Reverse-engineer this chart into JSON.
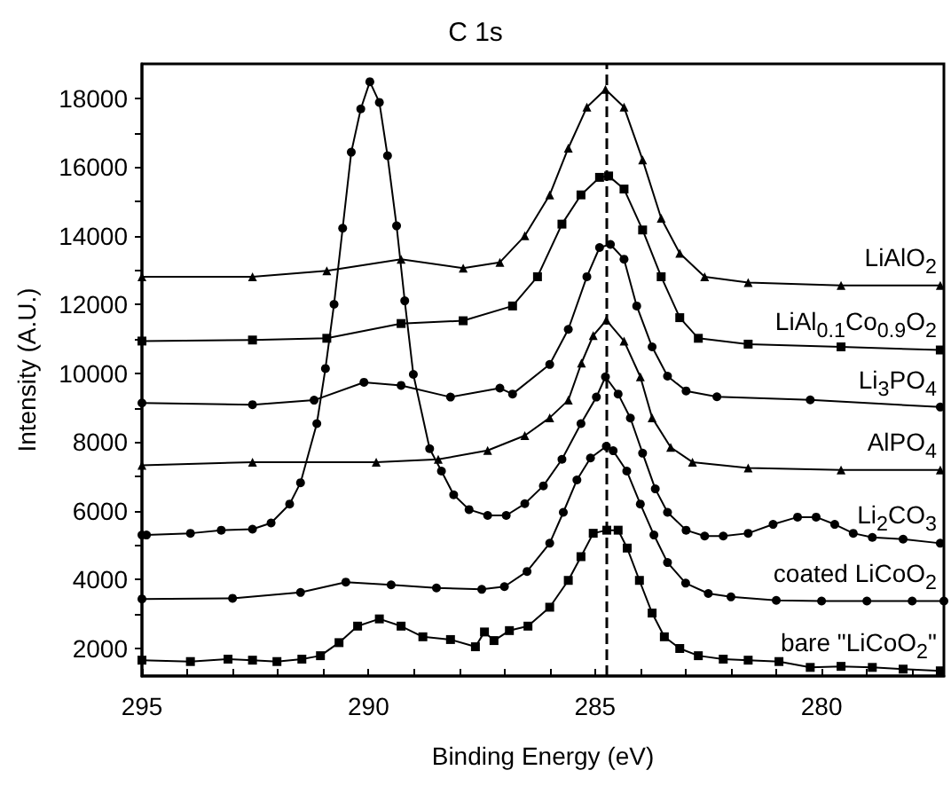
{
  "chart_data": {
    "type": "line",
    "title": "C 1s",
    "xlabel": "Binding Energy (eV)",
    "ylabel": "Intensity (A.U.)",
    "xlim": [
      295,
      277.3
    ],
    "ylim": [
      1200,
      19000
    ],
    "xticks": [
      295,
      {
        "value": 294,
        "label": null
      },
      {
        "value": 293,
        "label": null
      },
      {
        "value": 292,
        "label": null
      },
      {
        "value": 291,
        "label": null
      },
      290,
      {
        "value": 289,
        "label": null
      },
      {
        "value": 288,
        "label": null
      },
      {
        "value": 287,
        "label": null
      },
      {
        "value": 286,
        "label": null
      },
      285,
      {
        "value": 284,
        "label": null
      },
      {
        "value": 283,
        "label": null
      },
      {
        "value": 282,
        "label": null
      },
      {
        "value": 281,
        "label": null
      },
      280,
      {
        "value": 279,
        "label": null
      },
      {
        "value": 278,
        "label": null
      }
    ],
    "yticks": [
      2000,
      {
        "value": 3000,
        "label": null
      },
      4000,
      {
        "value": 5000,
        "label": null
      },
      6000,
      {
        "value": 7000,
        "label": null
      },
      8000,
      {
        "value": 9000,
        "label": null
      },
      10000,
      {
        "value": 11000,
        "label": null
      },
      12000,
      {
        "value": 13000,
        "label": null
      },
      14000,
      {
        "value": 15000,
        "label": null
      },
      16000,
      {
        "value": 17000,
        "label": null
      },
      18000
    ],
    "grid": false,
    "legend": false,
    "line_style": "solid",
    "ref_lines": [
      {
        "axis": "x",
        "value": 284.75,
        "color": "#000000",
        "line_style": "dashed"
      }
    ],
    "series": [
      {
        "name": "LiAlO$_{2}$",
        "color": "#000000",
        "marker": "triangle",
        "x": [
          295,
          292.56,
          290.92,
          289.28,
          287.91,
          287.1,
          286.55,
          286.0,
          285.59,
          285.18,
          284.77,
          284.36,
          283.95,
          283.54,
          283.13,
          282.58,
          281.62,
          279.57,
          277.38
        ],
        "values": [
          12810,
          12810,
          12980,
          13320,
          13060,
          13230,
          14000,
          15190,
          16550,
          17740,
          18260,
          17740,
          16210,
          14510,
          13490,
          12810,
          12640,
          12560,
          12560
        ]
      },
      {
        "name": "LiAl$_{0.1}$Co$_{0.9}$O$_{2}$",
        "color": "#000000",
        "marker": "square",
        "x": [
          295,
          292.56,
          290.92,
          289.28,
          287.91,
          286.82,
          286.27,
          285.73,
          285.31,
          284.9,
          284.7,
          284.36,
          283.95,
          283.54,
          283.13,
          282.72,
          281.62,
          279.57,
          277.38
        ],
        "values": [
          10940,
          10970,
          11020,
          11450,
          11530,
          11960,
          12810,
          14340,
          15190,
          15700,
          15740,
          15360,
          14170,
          12810,
          11620,
          11020,
          10850,
          10770,
          10680
        ]
      },
      {
        "name": "Li$_{3}$PO$_{4}$",
        "color": "#000000",
        "marker": "circle",
        "x": [
          295,
          292.56,
          291.2,
          290.1,
          289.28,
          288.19,
          287.1,
          286.82,
          286.0,
          285.59,
          285.18,
          284.9,
          284.66,
          284.36,
          284.08,
          283.74,
          283.4,
          282.99,
          282.31,
          280.25,
          277.38
        ],
        "values": [
          9140,
          9090,
          9220,
          9740,
          9650,
          9310,
          9570,
          9400,
          10260,
          11280,
          12810,
          13660,
          13750,
          13320,
          11960,
          10770,
          9920,
          9490,
          9320,
          9230,
          9020
        ]
      },
      {
        "name": "AlPO$_{4}$",
        "color": "#000000",
        "marker": "triangle",
        "x": [
          295,
          292.56,
          289.83,
          288.46,
          287.37,
          286.55,
          286.0,
          285.59,
          285.3,
          285.04,
          284.75,
          284.36,
          284.0,
          283.74,
          283.33,
          282.85,
          281.62,
          279.57,
          277.38
        ],
        "values": [
          7330,
          7420,
          7420,
          7500,
          7760,
          8190,
          8710,
          9220,
          10300,
          11100,
          11550,
          10940,
          9900,
          8710,
          7850,
          7420,
          7250,
          7190,
          7190
        ]
      },
      {
        "name": "Li$_{2}$CO$_{3}$",
        "color": "#000000",
        "marker": "circle",
        "x": [
          295,
          294.9,
          293.93,
          293.25,
          292.56,
          292.15,
          291.74,
          291.5,
          291.14,
          290.95,
          290.76,
          290.57,
          290.38,
          290.17,
          289.97,
          289.76,
          289.58,
          289.38,
          289.2,
          289.01,
          288.65,
          288.39,
          288.12,
          287.78,
          287.37,
          286.96,
          286.55,
          286.14,
          285.73,
          285.31,
          284.97,
          284.77,
          284.49,
          284.22,
          283.95,
          283.67,
          283.4,
          282.99,
          282.58,
          282.17,
          281.62,
          281.07,
          280.53,
          280.12,
          279.71,
          279.3,
          278.88,
          278.2,
          277.38
        ],
        "values": [
          5300,
          5300,
          5350,
          5440,
          5470,
          5650,
          6200,
          6820,
          8540,
          10140,
          12010,
          14220,
          16430,
          17690,
          18480,
          17880,
          16330,
          14290,
          12110,
          9970,
          7810,
          7160,
          6470,
          6040,
          5870,
          5870,
          6210,
          6730,
          7500,
          8540,
          9310,
          9900,
          9400,
          8700,
          7680,
          6640,
          5960,
          5440,
          5270,
          5270,
          5350,
          5610,
          5820,
          5820,
          5610,
          5350,
          5230,
          5180,
          5060
        ]
      },
      {
        "name": "coated LiCoO$_{2}$",
        "color": "#000000",
        "marker": "circle",
        "x": [
          295,
          293,
          291.5,
          290.5,
          289.5,
          288.5,
          287.5,
          287,
          286.5,
          286,
          285.7,
          285.4,
          285.1,
          284.75,
          284.6,
          284.3,
          284,
          283.7,
          283.4,
          283,
          282.5,
          282,
          281,
          280,
          279,
          278,
          277.3
        ],
        "values": [
          3440,
          3460,
          3630,
          3930,
          3850,
          3760,
          3720,
          3800,
          4240,
          5060,
          5960,
          6900,
          7540,
          7880,
          7750,
          7160,
          6200,
          5300,
          4500,
          3900,
          3600,
          3500,
          3400,
          3380,
          3380,
          3380,
          3380
        ]
      },
      {
        "name": "bare \"LiCoO$_{2}$\"",
        "color": "#000000",
        "marker": "square",
        "x": [
          295,
          293.93,
          293.1,
          292.56,
          292.02,
          291.47,
          291.06,
          290.65,
          290.24,
          289.76,
          289.28,
          288.8,
          288.19,
          287.64,
          287.44,
          287.23,
          286.89,
          286.48,
          286.0,
          285.59,
          285.31,
          285.04,
          284.74,
          284.49,
          284.29,
          284.02,
          283.74,
          283.47,
          283.13,
          282.72,
          282.17,
          281.62,
          280.94,
          280.25,
          279.57,
          278.88,
          278.2,
          277.38
        ],
        "values": [
          1660,
          1620,
          1690,
          1660,
          1620,
          1690,
          1790,
          2170,
          2650,
          2860,
          2650,
          2340,
          2260,
          2050,
          2480,
          2230,
          2520,
          2650,
          3200,
          3980,
          4670,
          5350,
          5440,
          5440,
          4920,
          3980,
          3030,
          2340,
          2000,
          1790,
          1690,
          1660,
          1620,
          1450,
          1480,
          1450,
          1400,
          1350
        ]
      }
    ]
  }
}
